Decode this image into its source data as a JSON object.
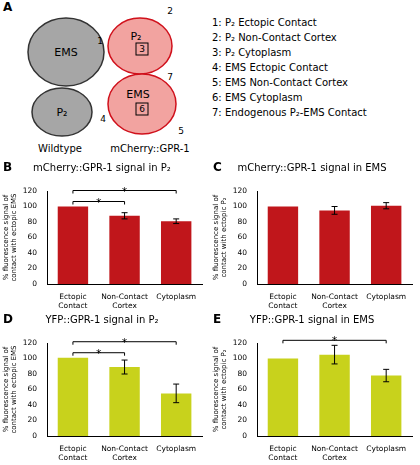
{
  "diagram": {
    "panel": "A",
    "groups": [
      {
        "caption": "Wildtype",
        "cells": [
          "EMS",
          "P₂"
        ]
      },
      {
        "caption": "mCherry::GPR-1",
        "cells": [
          "P₂",
          "EMS"
        ]
      }
    ],
    "markers": [
      "1",
      "2",
      "3",
      "4",
      "5",
      "6",
      "7"
    ],
    "key": [
      "1: P₂ Ectopic Contact",
      "2: P₂ Non-Contact Cortex",
      "3: P₂ Cytoplasm",
      "4: EMS Ectopic Contact",
      "5: EMS Non-Contact Cortex",
      "6: EMS Cytoplasm",
      "7: Endogenous P₂-EMS Contact"
    ]
  },
  "chart_data": [
    {
      "panel": "B",
      "type": "bar",
      "title": "mCherry::GPR-1 signal in P₂",
      "y_label": "% fluorescence signal of contact with ectopic EMS",
      "categories": [
        "Ectopic Contact",
        "Non-Contact Cortex",
        "Cytoplasm"
      ],
      "values": [
        100,
        88,
        81
      ],
      "errors": [
        0,
        4,
        3
      ],
      "color": "#c0161b",
      "ylim": [
        0,
        120
      ],
      "yticks": [
        0,
        20,
        40,
        60,
        80,
        100,
        120
      ],
      "significance": [
        {
          "from": "Ectopic Contact",
          "to": "Non-Contact Cortex",
          "label": "*"
        },
        {
          "from": "Ectopic Contact",
          "to": "Cytoplasm",
          "label": "*"
        }
      ]
    },
    {
      "panel": "C",
      "type": "bar",
      "title": "mCherry::GPR-1 signal in EMS",
      "y_label": "% fluorescence signal of contact with ectopic P₂",
      "categories": [
        "Ectopic Contact",
        "Non-Contact Cortex",
        "Cytoplasm"
      ],
      "values": [
        100,
        95,
        101
      ],
      "errors": [
        0,
        5,
        4
      ],
      "color": "#c0161b",
      "ylim": [
        0,
        120
      ],
      "yticks": [
        0,
        20,
        40,
        60,
        80,
        100,
        120
      ],
      "significance": []
    },
    {
      "panel": "D",
      "type": "bar",
      "title": "YFP::GPR-1 signal in P₂",
      "y_label": "% fluorescence signal of contact with ectopic EMS",
      "categories": [
        "Ectopic Contact",
        "Non-Contact Cortex",
        "Cytoplasm"
      ],
      "values": [
        101,
        89,
        55
      ],
      "errors": [
        0,
        9,
        12
      ],
      "color": "#c8d21c",
      "ylim": [
        0,
        120
      ],
      "yticks": [
        0,
        20,
        40,
        60,
        80,
        100,
        120
      ],
      "significance": [
        {
          "from": "Ectopic Contact",
          "to": "Non-Contact Cortex",
          "label": "*"
        },
        {
          "from": "Ectopic Contact",
          "to": "Cytoplasm",
          "label": "*"
        }
      ]
    },
    {
      "panel": "E",
      "type": "bar",
      "title": "YFP::GPR-1 signal in EMS",
      "y_label": "% fluorescence signal of contact with ectopic P₂",
      "categories": [
        "Ectopic Contact",
        "Non-Contact Cortex",
        "Cytoplasm"
      ],
      "values": [
        100,
        105,
        78
      ],
      "errors": [
        0,
        12,
        8
      ],
      "color": "#c8d21c",
      "ylim": [
        0,
        120
      ],
      "yticks": [
        0,
        20,
        40,
        60,
        80,
        100,
        120
      ],
      "significance": [
        {
          "from": "Ectopic Contact",
          "to": "Cytoplasm",
          "label": "*"
        }
      ]
    }
  ]
}
